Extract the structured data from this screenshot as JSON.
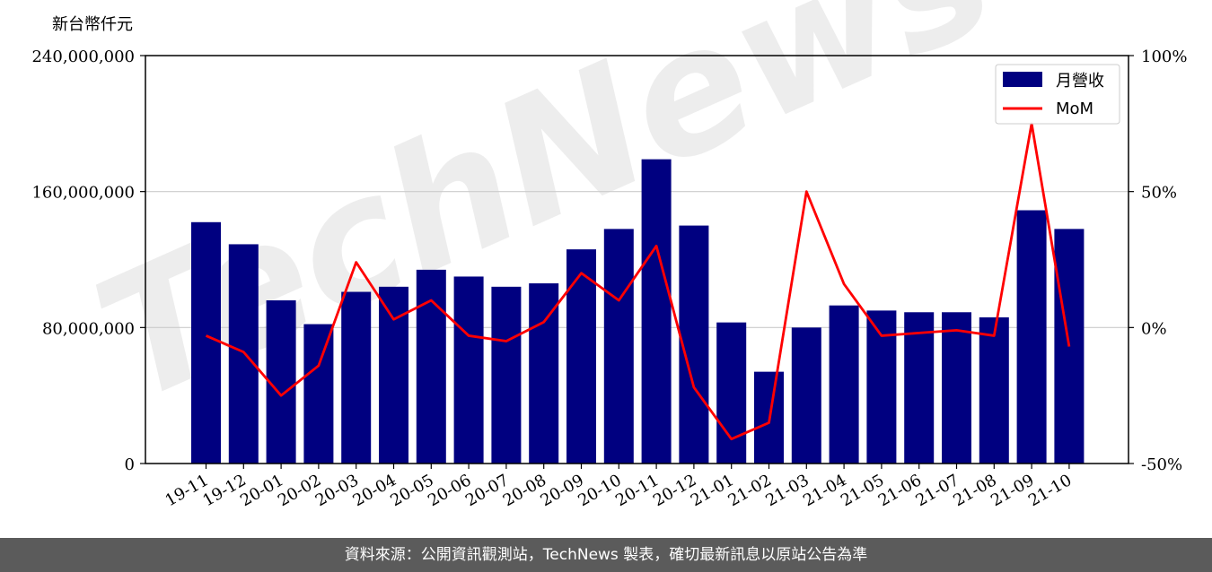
{
  "chart_data": {
    "type": "bar",
    "y_unit_label": "新台幣仟元",
    "categories": [
      "19-11",
      "19-12",
      "20-01",
      "20-02",
      "20-03",
      "20-04",
      "20-05",
      "20-06",
      "20-07",
      "20-08",
      "20-09",
      "20-10",
      "20-11",
      "20-12",
      "21-01",
      "21-02",
      "21-03",
      "21-04",
      "21-05",
      "21-06",
      "21-07",
      "21-08",
      "21-09",
      "21-10"
    ],
    "series": [
      {
        "name": "月營收",
        "type": "bar",
        "axis": "left",
        "color": "#000080",
        "values": [
          142000000,
          129000000,
          96000000,
          82000000,
          101000000,
          104000000,
          114000000,
          110000000,
          104000000,
          106000000,
          126000000,
          138000000,
          179000000,
          140000000,
          83000000,
          54000000,
          80000000,
          93000000,
          90000000,
          89000000,
          89000000,
          86000000,
          149000000,
          138000000
        ]
      },
      {
        "name": "MoM",
        "type": "line",
        "axis": "right",
        "unit": "%",
        "color": "#ff0000",
        "values": [
          -3,
          -9,
          -25,
          -14,
          24,
          3,
          10,
          -3,
          -5,
          2,
          20,
          10,
          30,
          -22,
          -41,
          -35,
          50,
          16,
          -3,
          -2,
          -1,
          -3,
          75,
          -7
        ]
      }
    ],
    "y_left": {
      "lim": [
        0,
        240000000
      ],
      "ticks": [
        "0",
        "80,000,000",
        "160,000,000",
        "240,000,000"
      ],
      "tick_values": [
        0,
        80000000,
        160000000,
        240000000
      ]
    },
    "y_right": {
      "lim": [
        -50,
        100
      ],
      "ticks": [
        "-50%",
        "0%",
        "50%",
        "100%"
      ],
      "tick_values": [
        -50,
        0,
        50,
        100
      ]
    },
    "grid": "horizontal",
    "legend_position": "top-right",
    "watermark": "TechNews"
  },
  "footer": {
    "text": "資料來源：公開資訊觀測站，TechNews 製表，確切最新訊息以原站公告為準"
  }
}
